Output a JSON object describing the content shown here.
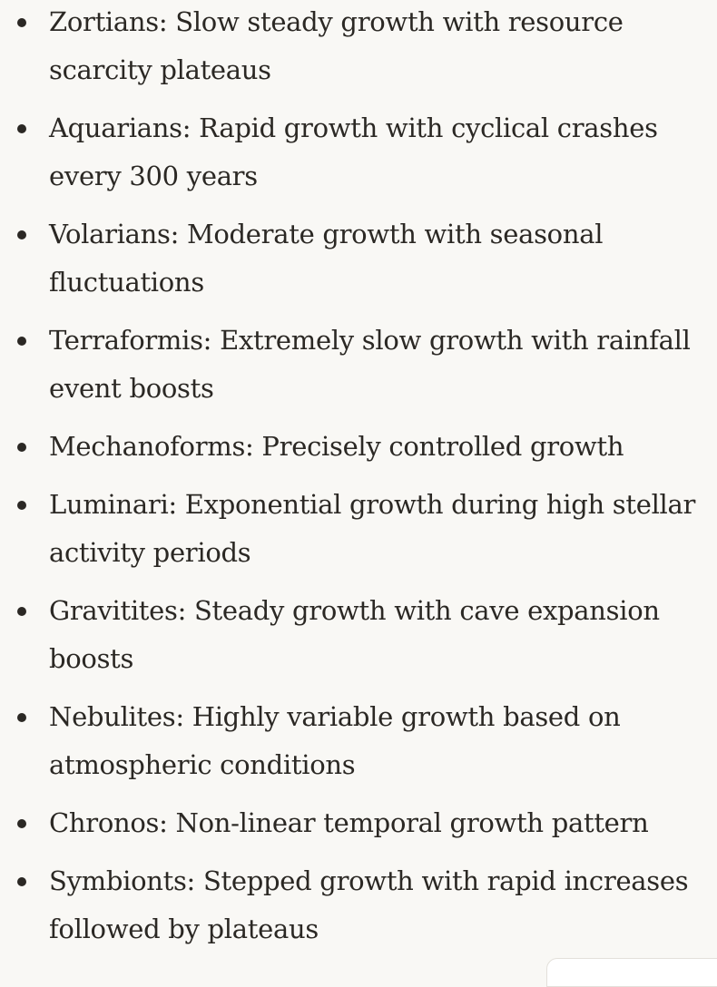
{
  "items": [
    {
      "text": "Zortians: Slow steady growth with resource scarcity plateaus"
    },
    {
      "text": "Aquarians: Rapid growth with cyclical crashes every 300 years"
    },
    {
      "text": "Volarians: Moderate growth with seasonal fluctuations"
    },
    {
      "text": "Terraformis: Extremely slow growth with rainfall event boosts"
    },
    {
      "text": "Mechanoforms: Precisely controlled growth"
    },
    {
      "text": "Luminari: Exponential growth during high stellar activity periods"
    },
    {
      "text": "Gravitites: Steady growth with cave expansion boosts"
    },
    {
      "text": "Nebulites: Highly variable growth based on atmospheric conditions"
    },
    {
      "text": "Chronos: Non-linear temporal growth pattern"
    },
    {
      "text": "Symbionts: Stepped growth with rapid increases followed by plateaus"
    }
  ]
}
